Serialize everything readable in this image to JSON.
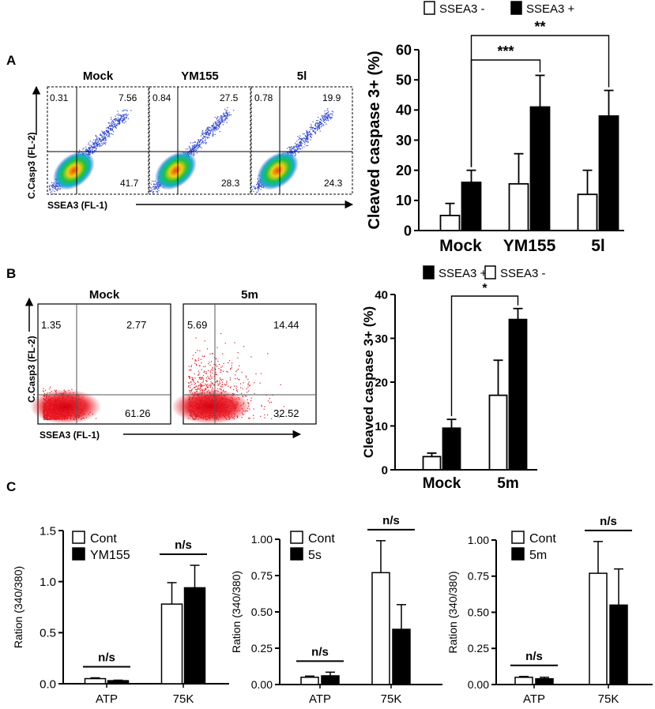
{
  "panel_labels": {
    "a": "A",
    "b": "B",
    "c": "C"
  },
  "flow_a": {
    "y_axis_label": "C.Casp3 (FL-2)",
    "x_axis_label": "SSEA3 (FL-1)",
    "dot_color": "#2f45d6",
    "plots": [
      {
        "title": "Mock",
        "ul": "0.31",
        "ur": "7.56",
        "lr": "41.7"
      },
      {
        "title": "YM155",
        "ul": "0.84",
        "ur": "27.5",
        "lr": "28.3"
      },
      {
        "title": "5l",
        "ul": "0.78",
        "ur": "19.9",
        "lr": "24.3"
      }
    ]
  },
  "flow_b": {
    "y_axis_label": "C.Casp3 (FL-2)",
    "x_axis_label": "SSEA3 (FL-1)",
    "dot_color": "#e8141e",
    "plots": [
      {
        "title": "Mock",
        "ul": "1.35",
        "ur": "2.77",
        "lr": "61.26"
      },
      {
        "title": "5m",
        "ul": "5.69",
        "ur": "14.44",
        "lr": "32.52"
      }
    ]
  },
  "chart_data": [
    {
      "id": "A",
      "type": "bar",
      "title": "",
      "xlabel": "",
      "ylabel": "Cleaved caspase 3+ (%)",
      "ylim": [
        0,
        60
      ],
      "yticks": [
        "0",
        "10",
        "20",
        "30",
        "40",
        "50",
        "60"
      ],
      "legend_placement": "top",
      "legend_labels": [
        "SSEA3 -",
        "SSEA3 +"
      ],
      "categories": [
        "Mock",
        "YM155",
        "5l"
      ],
      "series": [
        {
          "name": "SSEA3 -",
          "fill": "#ffffff",
          "values": [
            5,
            15.5,
            12
          ],
          "errors": [
            4,
            10,
            8
          ]
        },
        {
          "name": "SSEA3 +",
          "fill": "#000000",
          "values": [
            16,
            41,
            38
          ],
          "errors": [
            4,
            10.5,
            8.5
          ]
        }
      ],
      "significance": [
        {
          "label": "***",
          "from": "Mock",
          "to": "YM155"
        },
        {
          "label": "**",
          "from": "Mock",
          "to": "5l"
        }
      ]
    },
    {
      "id": "B",
      "type": "bar",
      "title": "",
      "xlabel": "",
      "ylabel": "Cleaved caspase 3+ (%)",
      "ylim": [
        0,
        40
      ],
      "yticks": [
        "0",
        "10",
        "20",
        "30",
        "40"
      ],
      "legend_placement": "top",
      "legend_labels": [
        "SSEA3 +",
        "SSEA3 -"
      ],
      "categories": [
        "Mock",
        "5m"
      ],
      "series": [
        {
          "name": "SSEA3 -",
          "fill": "#ffffff",
          "values": [
            3,
            17
          ],
          "errors": [
            0.8,
            8
          ]
        },
        {
          "name": "SSEA3 +",
          "fill": "#000000",
          "values": [
            9.5,
            34.3
          ],
          "errors": [
            2,
            2.5
          ]
        }
      ],
      "significance": [
        {
          "label": "*",
          "from": "Mock",
          "to": "5m"
        }
      ]
    },
    {
      "id": "C1",
      "type": "bar",
      "title": "",
      "xlabel": "",
      "ylabel": "Ration (340/380)",
      "ylim": [
        0,
        1.5
      ],
      "yticks": [
        "0.0",
        "0.5",
        "1.0",
        "1.5"
      ],
      "legend_placement": "top-left",
      "categories": [
        "ATP",
        "75K"
      ],
      "series": [
        {
          "name": "Cont",
          "fill": "#ffffff",
          "values": [
            0.05,
            0.78
          ],
          "errors": [
            0.008,
            0.21
          ]
        },
        {
          "name": "YM155",
          "fill": "#000000",
          "values": [
            0.03,
            0.94
          ],
          "errors": [
            0.005,
            0.22
          ]
        }
      ],
      "significance": [
        {
          "label": "n/s",
          "category": "ATP"
        },
        {
          "label": "n/s",
          "category": "75K"
        }
      ]
    },
    {
      "id": "C2",
      "type": "bar",
      "title": "",
      "xlabel": "",
      "ylabel": "Ration (340/380)",
      "ylim": [
        0,
        1.0
      ],
      "yticks": [
        "0.00",
        "0.25",
        "0.50",
        "0.75",
        "1.00"
      ],
      "legend_placement": "top-left",
      "categories": [
        "ATP",
        "75K"
      ],
      "series": [
        {
          "name": "Cont",
          "fill": "#ffffff",
          "values": [
            0.05,
            0.77
          ],
          "errors": [
            0.008,
            0.22
          ]
        },
        {
          "name": "5s",
          "fill": "#000000",
          "values": [
            0.06,
            0.38
          ],
          "errors": [
            0.025,
            0.17
          ]
        }
      ],
      "significance": [
        {
          "label": "n/s",
          "category": "ATP"
        },
        {
          "label": "n/s",
          "category": "75K"
        }
      ]
    },
    {
      "id": "C3",
      "type": "bar",
      "title": "",
      "xlabel": "",
      "ylabel": "Ration (340/380)",
      "ylim": [
        0,
        1.0
      ],
      "yticks": [
        "0.00",
        "0.25",
        "0.50",
        "0.75",
        "1.00"
      ],
      "legend_placement": "top-left",
      "categories": [
        "ATP",
        "75K"
      ],
      "series": [
        {
          "name": "Cont",
          "fill": "#ffffff",
          "values": [
            0.05,
            0.77
          ],
          "errors": [
            0.006,
            0.22
          ]
        },
        {
          "name": "5m",
          "fill": "#000000",
          "values": [
            0.04,
            0.55
          ],
          "errors": [
            0.01,
            0.25
          ]
        }
      ],
      "significance": [
        {
          "label": "n/s",
          "category": "ATP"
        },
        {
          "label": "n/s",
          "category": "75K"
        }
      ]
    }
  ]
}
